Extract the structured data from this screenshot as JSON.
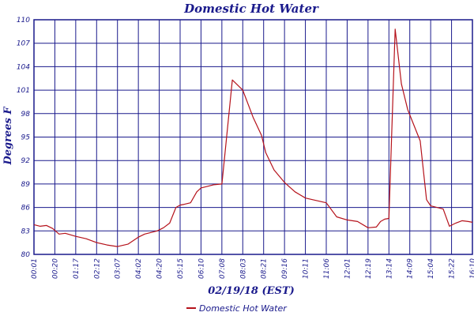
{
  "chart_data": {
    "type": "line",
    "title": "Domestic Hot Water",
    "xlabel": "02/19/18 (EST)",
    "ylabel": "Degrees F",
    "ylim": [
      80,
      110
    ],
    "yticks": [
      "80",
      "83",
      "86",
      "89",
      "92",
      "95",
      "98",
      "101",
      "104",
      "107",
      "110"
    ],
    "xticks": [
      "00:01",
      "00:20",
      "01:17",
      "02:12",
      "03:07",
      "04:02",
      "04:20",
      "05:15",
      "06:10",
      "07:08",
      "08:03",
      "08:21",
      "09:16",
      "10:11",
      "11:06",
      "12:01",
      "12:19",
      "13:14",
      "14:09",
      "15:04",
      "15:22",
      "16:10"
    ],
    "grid": true,
    "legend_position": "bottom-center",
    "series": [
      {
        "name": "Domestic Hot Water",
        "color": "#b5121b",
        "x": [
          0,
          0.3,
          0.6,
          0.9,
          1.2,
          1.5,
          2,
          2.5,
          3,
          3.5,
          4,
          4.5,
          5,
          5.3,
          5.6,
          5.9,
          6.2,
          6.5,
          6.8,
          7,
          7.2,
          7.5,
          7.8,
          8,
          8.3,
          8.6,
          9,
          9.5,
          10,
          10.5,
          10.9,
          11.1,
          11.5,
          12,
          12.5,
          13,
          13.5,
          14,
          14.5,
          15,
          15.5,
          16,
          16.4,
          16.6,
          16.8,
          17,
          17.3,
          17.6,
          17.9,
          18.2,
          18.5,
          18.8,
          19,
          19.3,
          19.6,
          19.9,
          20.2,
          20.5,
          20.8,
          21
        ],
        "y": [
          83.8,
          83.6,
          83.7,
          83.3,
          82.6,
          82.7,
          82.3,
          82.0,
          81.5,
          81.2,
          81.0,
          81.3,
          82.2,
          82.6,
          82.8,
          83.0,
          83.4,
          84.0,
          86.0,
          86.3,
          86.4,
          86.6,
          88.0,
          88.5,
          88.7,
          88.9,
          89.0,
          102.3,
          101.0,
          97.5,
          95.2,
          93.0,
          90.8,
          89.2,
          88.0,
          87.2,
          86.9,
          86.6,
          84.8,
          84.4,
          84.2,
          83.4,
          83.5,
          84.2,
          84.5,
          84.6,
          108.8,
          101.8,
          98.5,
          96.5,
          94.5,
          87.0,
          86.2,
          86.0,
          85.8,
          83.6,
          84.0,
          84.3,
          84.2,
          84.1
        ]
      }
    ]
  }
}
